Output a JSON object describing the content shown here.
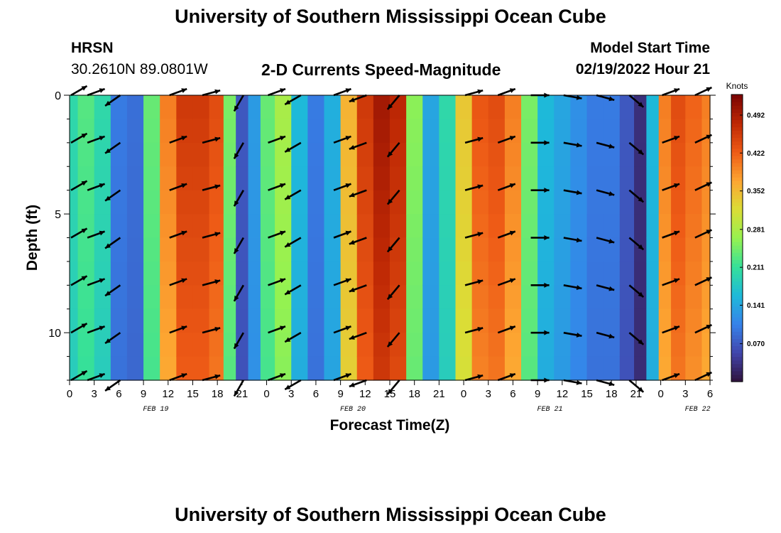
{
  "header": {
    "title": "University of Southern Mississippi Ocean Cube",
    "station": "HRSN",
    "location": "30.2610N  89.0801W",
    "subtitle": "2-D Currents Speed-Magnitude",
    "start_label": "Model Start Time",
    "start_time": "02/19/2022 Hour 21"
  },
  "footer": {
    "title": "University of Southern Mississippi Ocean Cube"
  },
  "chart_data": {
    "type": "heatmap",
    "title": "2-D Currents Speed-Magnitude",
    "xlabel": "Forecast Time(Z)",
    "ylabel": "Depth (ft)",
    "x_range": [
      0,
      78
    ],
    "ylim": [
      0,
      12
    ],
    "y_inverted": true,
    "x_tick_labels": [
      "0",
      "3",
      "6",
      "9",
      "12",
      "15",
      "18",
      "21",
      "0",
      "3",
      "6",
      "9",
      "12",
      "15",
      "18",
      "21",
      "0",
      "3",
      "6",
      "9",
      "12",
      "15",
      "18",
      "21",
      "0",
      "3",
      "6"
    ],
    "y_ticks": [
      0,
      5,
      10
    ],
    "date_labels": [
      {
        "text": "FEB 19",
        "hour": 10.5
      },
      {
        "text": "FEB 20",
        "hour": 34.5
      },
      {
        "text": "FEB 21",
        "hour": 58.5
      },
      {
        "text": "FEB 22",
        "hour": 76.5
      }
    ],
    "colorbar": {
      "title": "Knots",
      "min": 0.0,
      "max": 0.53,
      "ticks": [
        "0.070",
        "0.141",
        "0.211",
        "0.281",
        "0.352",
        "0.422",
        "0.492"
      ]
    },
    "speed_profile": {
      "hours": [
        0,
        2,
        4,
        6,
        8,
        10,
        12,
        14,
        16,
        18,
        19.5,
        21,
        22.5,
        24,
        26,
        28,
        30,
        32,
        34,
        36,
        38,
        40,
        42,
        44,
        46,
        48,
        50,
        52,
        54,
        56,
        58,
        60,
        62,
        64,
        66,
        68,
        69.5,
        71,
        72.5,
        74,
        76,
        78
      ],
      "knots": [
        0.2,
        0.23,
        0.2,
        0.1,
        0.09,
        0.24,
        0.4,
        0.46,
        0.46,
        0.44,
        0.25,
        0.07,
        0.13,
        0.24,
        0.28,
        0.16,
        0.1,
        0.15,
        0.36,
        0.46,
        0.5,
        0.48,
        0.26,
        0.14,
        0.2,
        0.34,
        0.43,
        0.44,
        0.4,
        0.25,
        0.16,
        0.14,
        0.12,
        0.1,
        0.1,
        0.07,
        0.03,
        0.16,
        0.4,
        0.44,
        0.42,
        0.4
      ]
    },
    "arrow_rows_ft": [
      0,
      2,
      4,
      6,
      8,
      10,
      12
    ],
    "arrow_hours": [
      0,
      2,
      6,
      12,
      16,
      21,
      24,
      28,
      32,
      36,
      40,
      48,
      52,
      56,
      60,
      64,
      68,
      72,
      76
    ],
    "arrow_directions_deg": [
      30,
      20,
      215,
      20,
      15,
      240,
      20,
      210,
      20,
      200,
      230,
      15,
      20,
      0,
      -10,
      -15,
      -40,
      20,
      25
    ]
  }
}
